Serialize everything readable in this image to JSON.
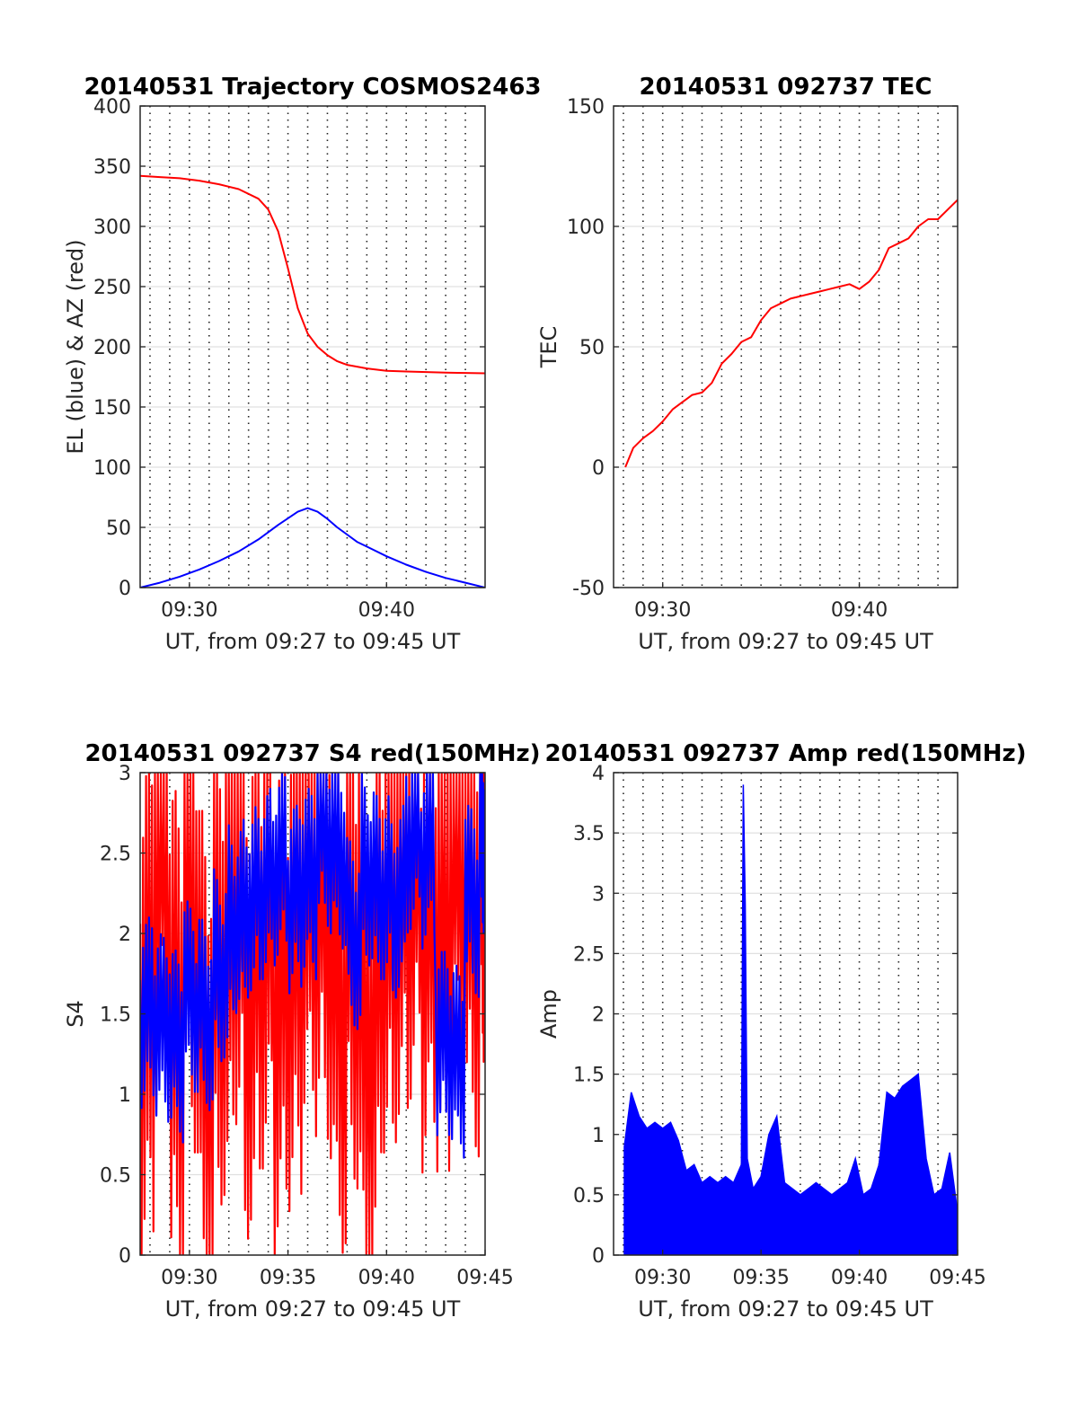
{
  "chart_data": [
    {
      "type": "line",
      "title": "20140531 Trajectory COSMOS2463",
      "xlabel": "UT, from 09:27 to 09:45 UT",
      "ylabel": "EL (blue) & AZ (red)",
      "xlim": [
        27.5,
        45
      ],
      "ylim": [
        0,
        400
      ],
      "xticks": [
        30,
        40
      ],
      "xtick_labels": [
        "09:30",
        "09:40"
      ],
      "yticks": [
        0,
        50,
        100,
        150,
        200,
        250,
        300,
        350,
        400
      ],
      "ytick_labels": [
        "0",
        "50",
        "100",
        "150",
        "200",
        "250",
        "300",
        "350",
        "400"
      ],
      "grid": true,
      "x_minor_grid": [
        28,
        29,
        30,
        31,
        32,
        33,
        34,
        35,
        36,
        37,
        38,
        39,
        40,
        41,
        42,
        43,
        44
      ],
      "series": [
        {
          "color": "#ff0000",
          "x": [
            27.5,
            28.5,
            29.5,
            30.5,
            31.5,
            32.5,
            33.5,
            34,
            34.5,
            35,
            35.5,
            36,
            36.5,
            37,
            37.5,
            38,
            39,
            40,
            41,
            42,
            43,
            44,
            45
          ],
          "y": [
            342,
            341,
            340,
            338,
            335,
            331,
            323,
            314,
            296,
            265,
            232,
            211,
            200,
            193,
            188,
            185,
            182,
            180,
            179.5,
            179,
            178.5,
            178.3,
            178
          ]
        },
        {
          "color": "#0000ff",
          "x": [
            27.5,
            28.5,
            29.5,
            30.5,
            31.5,
            32.5,
            33.5,
            34.5,
            35.5,
            36,
            36.5,
            37,
            37.5,
            38,
            38.5,
            39,
            40,
            41,
            42,
            43,
            44,
            45
          ],
          "y": [
            0,
            4,
            9,
            15,
            22,
            30,
            40,
            52,
            63,
            66,
            63,
            57,
            50,
            44,
            38,
            34,
            26,
            19,
            13,
            8,
            4,
            0
          ]
        }
      ]
    },
    {
      "type": "line",
      "title": "20140531 092737 TEC",
      "xlabel": "UT, from 09:27 to 09:45 UT",
      "ylabel": "TEC",
      "xlim": [
        27.5,
        45
      ],
      "ylim": [
        -50,
        150
      ],
      "xticks": [
        30,
        40
      ],
      "xtick_labels": [
        "09:30",
        "09:40"
      ],
      "yticks": [
        -50,
        0,
        50,
        100,
        150
      ],
      "ytick_labels": [
        "-50",
        "0",
        "50",
        "100",
        "150"
      ],
      "grid": true,
      "x_minor_grid": [
        28,
        29,
        30,
        31,
        32,
        33,
        34,
        35,
        36,
        37,
        38,
        39,
        40,
        41,
        42,
        43,
        44
      ],
      "series": [
        {
          "color": "#ff0000",
          "x": [
            28.1,
            28.5,
            29,
            29.5,
            30,
            30.5,
            31,
            31.5,
            32,
            32.5,
            33,
            33.5,
            34,
            34.5,
            35,
            35.5,
            36,
            36.5,
            37,
            37.5,
            38,
            38.5,
            39,
            39.5,
            40,
            40.5,
            41,
            41.5,
            42,
            42.5,
            43,
            43.5,
            44,
            44.5,
            45
          ],
          "y": [
            0,
            8,
            12,
            15,
            19,
            24,
            27,
            30,
            31,
            35,
            43,
            47,
            52,
            54,
            61,
            66,
            68,
            70,
            71,
            72,
            73,
            74,
            75,
            76,
            74,
            77,
            82,
            91,
            93,
            95,
            100,
            103,
            103,
            107,
            111
          ]
        }
      ]
    },
    {
      "type": "line",
      "title": "20140531 092737 S4 red(150MHz)",
      "xlabel": "UT, from 09:27 to 09:45 UT",
      "ylabel": "S4",
      "xlim": [
        27.5,
        45
      ],
      "ylim": [
        0,
        3
      ],
      "xticks": [
        30,
        35,
        40,
        45
      ],
      "xtick_labels": [
        "09:30",
        "09:35",
        "09:40",
        "09:45"
      ],
      "yticks": [
        0,
        0.5,
        1,
        1.5,
        2,
        2.5,
        3
      ],
      "ytick_labels": [
        "0",
        "0.5",
        "1",
        "1.5",
        "2",
        "2.5",
        "3"
      ],
      "grid": true,
      "x_minor_grid": [
        28,
        29,
        30,
        31,
        32,
        33,
        34,
        35,
        36,
        37,
        38,
        39,
        40,
        41,
        42,
        43,
        44
      ],
      "series": [
        {
          "color": "#ff0000",
          "x": [
            27.5,
            28.25,
            29,
            29.75,
            30.5,
            31.25,
            32,
            32.75,
            33.5,
            34.25,
            35,
            35.75,
            36.5,
            37.25,
            38,
            38.75,
            39.5,
            40.25,
            41,
            41.75,
            42.5,
            43.25,
            44,
            44.75
          ],
          "y": [
            1.5,
            2.6,
            1.3,
            2.2,
            1.2,
            1.9,
            2.4,
            1.7,
            2.1,
            1.6,
            1.8,
            2.3,
            2.2,
            1.6,
            2.0,
            1.4,
            2.2,
            2.3,
            2.5,
            2.1,
            2.0,
            2.6,
            2.2,
            2.8
          ]
        },
        {
          "color": "#0000ff",
          "x": [
            27.5,
            28.25,
            29,
            29.75,
            30.5,
            31.25,
            32,
            32.75,
            33.5,
            34.25,
            35,
            35.75,
            36.5,
            37.25,
            38,
            38.75,
            39.5,
            40.25,
            41,
            41.75,
            42.5,
            43.25,
            44,
            44.75
          ],
          "y": [
            1.5,
            1.4,
            1.3,
            1.6,
            1.5,
            1.8,
            2.1,
            2.2,
            2.3,
            2.4,
            2.2,
            2.3,
            2.6,
            2.5,
            2.0,
            2.4,
            2.3,
            2.2,
            2.6,
            2.5,
            1.3,
            1.2,
            2.2,
            2.6
          ]
        }
      ]
    },
    {
      "type": "line",
      "title": "20140531 092737 Amp red(150MHz)",
      "xlabel": "UT, from 09:27 to 09:45 UT",
      "ylabel": "Amp",
      "xlim": [
        27.5,
        45
      ],
      "ylim": [
        0,
        4
      ],
      "xticks": [
        30,
        35,
        40,
        45
      ],
      "xtick_labels": [
        "09:30",
        "09:35",
        "09:40",
        "09:45"
      ],
      "yticks": [
        0,
        0.5,
        1,
        1.5,
        2,
        2.5,
        3,
        3.5,
        4
      ],
      "ytick_labels": [
        "0",
        "0.5",
        "1",
        "1.5",
        "2",
        "2.5",
        "3",
        "3.5",
        "4"
      ],
      "grid": true,
      "x_minor_grid": [
        28,
        29,
        30,
        31,
        32,
        33,
        34,
        35,
        36,
        37,
        38,
        39,
        40,
        41,
        42,
        43,
        44
      ],
      "series": [
        {
          "color": "#0000ff",
          "x": [
            28.05,
            28.4,
            28.8,
            29.2,
            29.6,
            30,
            30.4,
            30.8,
            31.2,
            31.6,
            32,
            32.4,
            32.8,
            33.2,
            33.6,
            34,
            34.1,
            34.2,
            34.3,
            34.6,
            35,
            35.4,
            35.8,
            36.2,
            36.6,
            37,
            37.4,
            37.8,
            38.2,
            38.6,
            39,
            39.4,
            39.8,
            40.2,
            40.6,
            41,
            41.4,
            41.8,
            42.2,
            42.6,
            43,
            43.4,
            43.8,
            44.2,
            44.6,
            45
          ],
          "y": [
            0.9,
            1.35,
            1.15,
            1.05,
            1.1,
            1.05,
            1.1,
            0.95,
            0.7,
            0.75,
            0.6,
            0.65,
            0.6,
            0.65,
            0.6,
            0.75,
            3.9,
            2.9,
            0.8,
            0.55,
            0.65,
            1.0,
            1.15,
            0.6,
            0.55,
            0.5,
            0.55,
            0.6,
            0.55,
            0.5,
            0.55,
            0.6,
            0.8,
            0.5,
            0.55,
            0.75,
            1.35,
            1.3,
            1.4,
            1.45,
            1.5,
            0.8,
            0.5,
            0.55,
            0.85,
            0.35
          ]
        }
      ]
    }
  ]
}
